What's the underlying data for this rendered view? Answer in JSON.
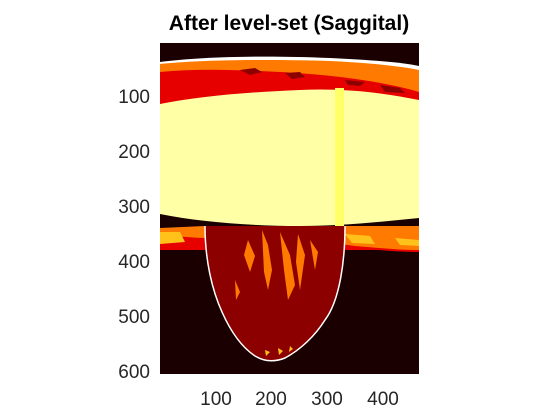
{
  "figure": {
    "title": "After level-set (Saggital)"
  },
  "axes": {
    "y_ticks": [
      "100",
      "200",
      "300",
      "400",
      "500",
      "600"
    ],
    "x_ticks": [
      "100",
      "200",
      "300",
      "400"
    ],
    "y_range": [
      0,
      600
    ],
    "x_range": [
      0,
      465
    ]
  },
  "colors": {
    "background": "#1a0000",
    "dark_red": "#8c0000",
    "red": "#e60000",
    "orange": "#ff7a00",
    "yellow_orange": "#ffc21a",
    "bright_yellow": "#ffff66",
    "pale_yellow": "#ffffa6",
    "white": "#ffffff"
  }
}
